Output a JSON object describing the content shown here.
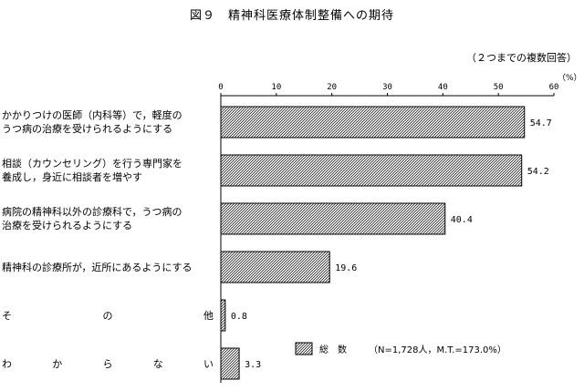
{
  "chart_data": {
    "type": "bar",
    "orientation": "horizontal",
    "title": "図９　精神科医療体制整備への期待",
    "note": "（２つまでの複数回答）",
    "unit": "（%）",
    "xlim": [
      0,
      60
    ],
    "ticks": [
      "0",
      "10",
      "20",
      "30",
      "40",
      "50",
      "60"
    ],
    "categories": [
      [
        "かかりつけの医師（内科等）で，軽度の",
        "うつ病の治療を受けられるようにする"
      ],
      [
        "相談（カウンセリング）を行う専門家を",
        "養成し，身近に相談者を増やす"
      ],
      [
        "病院の精神科以外の診療科で，うつ病の",
        "治療を受けられるようにする"
      ],
      [
        "精神科の診療所が，近所にあるようにする"
      ],
      [
        "その他"
      ],
      [
        "わからない"
      ]
    ],
    "values": [
      54.7,
      54.2,
      40.4,
      19.6,
      0.8,
      3.3
    ],
    "value_labels": [
      "54.7",
      "54.2",
      "40.4",
      "19.6",
      "0.8",
      "3.3"
    ],
    "legend": {
      "series": "総　数",
      "detail": "（N=1,728人，M.T.=173.0%）"
    },
    "bar_fill": "hatched",
    "grid": false
  }
}
